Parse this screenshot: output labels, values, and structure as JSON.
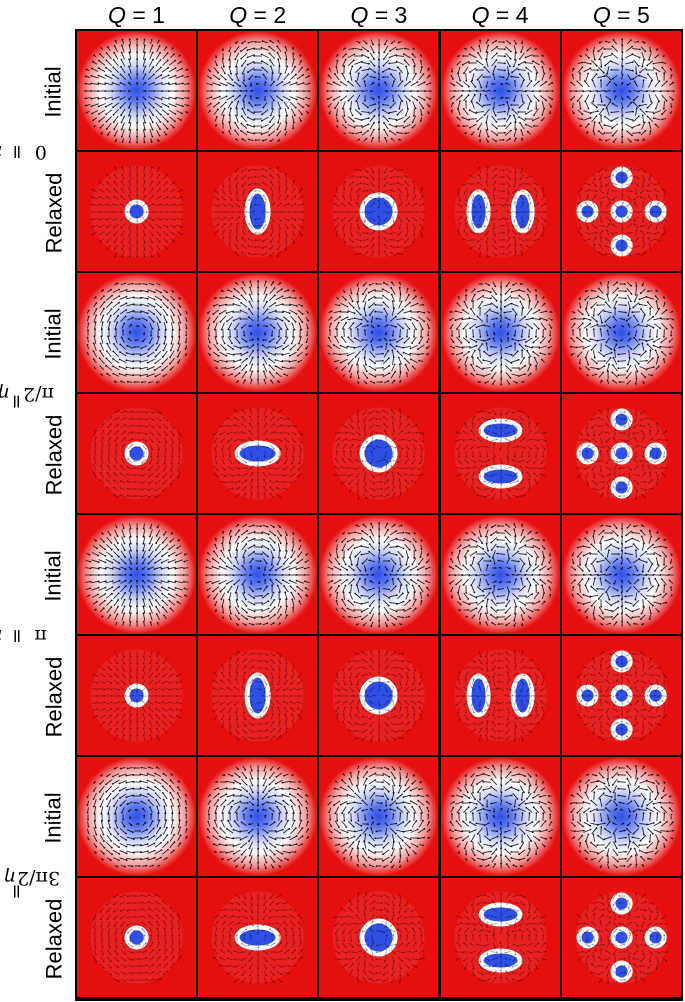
{
  "columns": [
    {
      "var": "Q",
      "value": "1"
    },
    {
      "var": "Q",
      "value": "2"
    },
    {
      "var": "Q",
      "value": "3"
    },
    {
      "var": "Q",
      "value": "4"
    },
    {
      "var": "Q",
      "value": "5"
    }
  ],
  "groups": [
    {
      "var": "η",
      "value": "0",
      "rows": [
        "Initial",
        "Relaxed"
      ]
    },
    {
      "var": "η",
      "value": "π/2",
      "rows": [
        "Initial",
        "Relaxed"
      ]
    },
    {
      "var": "η",
      "value": "π",
      "rows": [
        "Initial",
        "Relaxed"
      ]
    },
    {
      "var": "η",
      "value": "3π/2",
      "rows": [
        "Initial",
        "Relaxed"
      ]
    }
  ],
  "colors": {
    "background": "#e61010",
    "core": "#2f4fe6",
    "mid": "#ffffff",
    "arrow": "#000000",
    "grid_line": "#000000"
  }
}
